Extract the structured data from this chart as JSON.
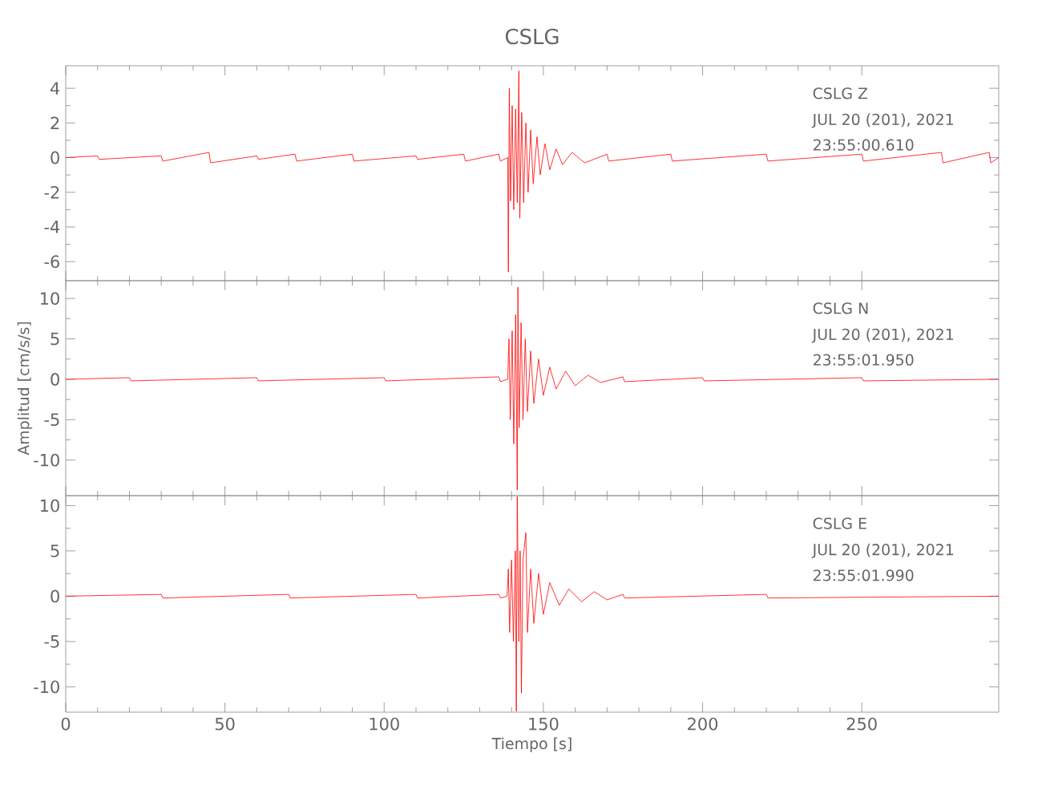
{
  "chart_data": [
    {
      "type": "line",
      "title": "CSLG",
      "color": "#ff0000",
      "xlim": [
        0,
        293
      ],
      "ylim": [
        -7.1,
        5.3
      ],
      "xticks": [
        0,
        50,
        100,
        150,
        200,
        250
      ],
      "yticks": [
        -6,
        -4,
        -2,
        0,
        2,
        4
      ],
      "tick_labels": "y",
      "annotations": [
        "CSLG   Z",
        "JUL 20 (201), 2021",
        "23:55:00.610"
      ],
      "x": [
        0,
        10,
        10.5,
        30,
        30.5,
        45,
        45.5,
        60,
        60.5,
        72,
        72.5,
        90,
        90.5,
        110,
        110.5,
        125,
        125.5,
        136,
        136.5,
        138.8,
        139,
        139.3,
        139.7,
        140.2,
        140.7,
        141.3,
        141.8,
        142.3,
        142.6,
        143.2,
        143.8,
        144.5,
        145.2,
        146,
        146.8,
        148,
        149,
        150.5,
        152,
        154,
        156,
        159,
        163,
        170,
        170.5,
        190,
        190.5,
        220,
        220.5,
        250,
        250.5,
        275,
        275.5,
        290,
        290.5,
        293
      ],
      "values": [
        0,
        0.1,
        -0.1,
        0.1,
        -0.2,
        0.3,
        -0.3,
        0.1,
        -0.1,
        0.2,
        -0.2,
        0.2,
        -0.2,
        0.1,
        -0.1,
        0.2,
        -0.2,
        0.2,
        -0.2,
        0,
        -6.6,
        4.0,
        -2.5,
        3.0,
        -3.0,
        2.8,
        -2.6,
        5.0,
        -3.5,
        2.6,
        -2.6,
        2.0,
        -2.0,
        1.6,
        -1.5,
        1.2,
        -1.0,
        0.8,
        -0.7,
        0.5,
        -0.4,
        0.3,
        -0.3,
        0.2,
        -0.2,
        0.2,
        -0.2,
        0.2,
        -0.2,
        0.2,
        -0.2,
        0.3,
        -0.3,
        0.3,
        -0.3,
        0
      ]
    },
    {
      "type": "line",
      "ylabel": "Amplitud [cm/s/s]",
      "color": "#ff0000",
      "xlim": [
        0,
        293
      ],
      "ylim": [
        -14.4,
        12.2
      ],
      "xticks": [
        0,
        50,
        100,
        150,
        200,
        250
      ],
      "yticks": [
        -10,
        -5,
        0,
        5,
        10
      ],
      "tick_labels": "y",
      "annotations": [
        "CSLG   N",
        "JUL 20 (201), 2021",
        "23:55:01.950"
      ],
      "x": [
        0,
        20,
        20.5,
        60,
        60.5,
        100,
        100.5,
        136,
        136.5,
        138.8,
        139.2,
        139.6,
        140.2,
        140.7,
        141.3,
        141.8,
        142,
        142.4,
        143,
        143.6,
        144.3,
        145,
        146,
        147,
        148.5,
        150,
        152,
        154,
        157,
        160,
        164,
        168,
        175,
        175.5,
        200,
        200.5,
        250,
        250.5,
        293
      ],
      "values": [
        0,
        0.2,
        -0.2,
        0.2,
        -0.2,
        0.2,
        -0.2,
        0.3,
        -0.3,
        0,
        5,
        -5,
        6,
        -8,
        8,
        -13.7,
        11.4,
        -6,
        7,
        -5,
        5,
        -4,
        3.5,
        -3,
        2.5,
        -2,
        1.5,
        -1.2,
        1,
        -0.8,
        0.5,
        -0.4,
        0.3,
        -0.3,
        0.2,
        -0.2,
        0.2,
        -0.2,
        0
      ]
    },
    {
      "type": "line",
      "xlabel": "Tiempo [s]",
      "color": "#ff0000",
      "xlim": [
        0,
        293
      ],
      "ylim": [
        -12.8,
        11.1
      ],
      "xticks": [
        0,
        50,
        100,
        150,
        200,
        250
      ],
      "yticks": [
        -10,
        -5,
        0,
        5,
        10
      ],
      "annotations": [
        "CSLG   E",
        "JUL 20 (201), 2021",
        "23:55:01.990"
      ],
      "x": [
        0,
        30,
        30.5,
        70,
        70.5,
        110,
        110.5,
        136,
        136.5,
        138.6,
        139,
        139.4,
        140,
        140.6,
        141.2,
        141.5,
        141.8,
        142.3,
        142.7,
        143.1,
        143.6,
        144.5,
        145,
        146,
        147,
        148.5,
        150,
        152,
        155,
        158,
        162,
        166,
        170,
        175,
        175.5,
        220,
        220.5,
        293
      ],
      "values": [
        0,
        0.2,
        -0.2,
        0.2,
        -0.2,
        0.2,
        -0.2,
        0.2,
        -0.2,
        0,
        3,
        -4,
        4,
        -5,
        5,
        -12.7,
        11,
        -5,
        5,
        -10.7,
        4,
        7,
        -4,
        3,
        -3,
        2.5,
        -2,
        1.5,
        -1,
        0.8,
        -0.6,
        0.5,
        -0.4,
        0.2,
        -0.2,
        0.2,
        -0.2,
        0
      ]
    }
  ]
}
